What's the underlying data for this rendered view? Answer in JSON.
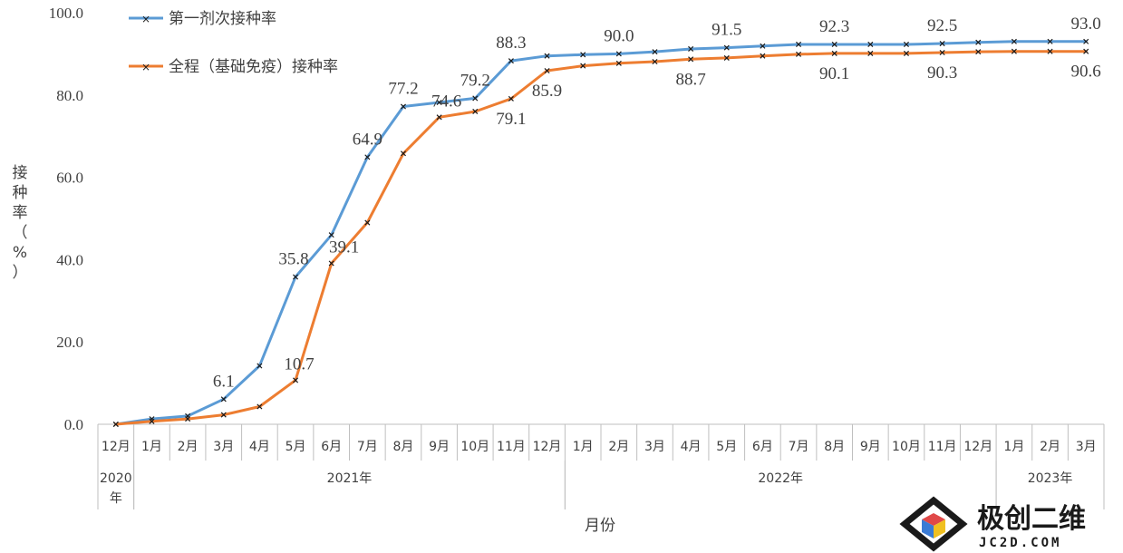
{
  "chart_data": {
    "type": "line",
    "xlabel": "月份",
    "ylabel": "接种率（%）",
    "ylim": [
      0,
      100
    ],
    "yticks": [
      "0.0",
      "20.0",
      "40.0",
      "60.0",
      "80.0",
      "100.0"
    ],
    "categories": [
      "12月",
      "1月",
      "2月",
      "3月",
      "4月",
      "5月",
      "6月",
      "7月",
      "8月",
      "9月",
      "10月",
      "11月",
      "12月",
      "1月",
      "2月",
      "3月",
      "4月",
      "5月",
      "6月",
      "7月",
      "8月",
      "9月",
      "10月",
      "11月",
      "12月",
      "1月",
      "2月",
      "3月"
    ],
    "year_groups": [
      {
        "label": "2020年",
        "start": 0,
        "end": 0
      },
      {
        "label": "2021年",
        "start": 1,
        "end": 12
      },
      {
        "label": "2022年",
        "start": 13,
        "end": 24
      },
      {
        "label": "2023年",
        "start": 25,
        "end": 27
      }
    ],
    "legend_position": "top-left",
    "series": [
      {
        "name": "第一剂次接种率",
        "color": "#5b9bd5",
        "values": [
          0.0,
          1.3,
          2.0,
          6.1,
          14.2,
          35.8,
          46.0,
          64.9,
          77.2,
          78.2,
          79.2,
          88.3,
          89.5,
          89.8,
          90.0,
          90.5,
          91.2,
          91.5,
          91.9,
          92.3,
          92.3,
          92.3,
          92.3,
          92.5,
          92.8,
          93.0,
          93.0,
          93.0
        ],
        "labels": [
          {
            "index": 3,
            "text": "6.1"
          },
          {
            "index": 5,
            "text": "35.8"
          },
          {
            "index": 7,
            "text": "64.9"
          },
          {
            "index": 8,
            "text": "77.2"
          },
          {
            "index": 10,
            "text": "79.2"
          },
          {
            "index": 11,
            "text": "88.3"
          },
          {
            "index": 14,
            "text": "90.0"
          },
          {
            "index": 17,
            "text": "91.5"
          },
          {
            "index": 20,
            "text": "92.3"
          },
          {
            "index": 23,
            "text": "92.5"
          },
          {
            "index": 27,
            "text": "93.0"
          }
        ]
      },
      {
        "name": "全程（基础免疫）接种率",
        "color": "#ed7d31",
        "values": [
          0.0,
          0.7,
          1.3,
          2.3,
          4.3,
          10.7,
          39.1,
          49.0,
          65.8,
          74.6,
          76.0,
          79.1,
          85.9,
          87.1,
          87.7,
          88.1,
          88.7,
          89.0,
          89.5,
          89.9,
          90.1,
          90.1,
          90.1,
          90.3,
          90.5,
          90.6,
          90.6,
          90.6
        ],
        "labels": [
          {
            "index": 5,
            "text": "10.7"
          },
          {
            "index": 6,
            "text": "39.1"
          },
          {
            "index": 9,
            "text": "74.6"
          },
          {
            "index": 11,
            "text": "79.1"
          },
          {
            "index": 12,
            "text": "85.9"
          },
          {
            "index": 16,
            "text": "88.7"
          },
          {
            "index": 20,
            "text": "90.1"
          },
          {
            "index": 23,
            "text": "90.3"
          },
          {
            "index": 27,
            "text": "90.6"
          }
        ]
      }
    ]
  },
  "watermark": {
    "brand": "极创二维",
    "site": "JC2D.COM",
    "icon": "cube-logo-icon"
  }
}
